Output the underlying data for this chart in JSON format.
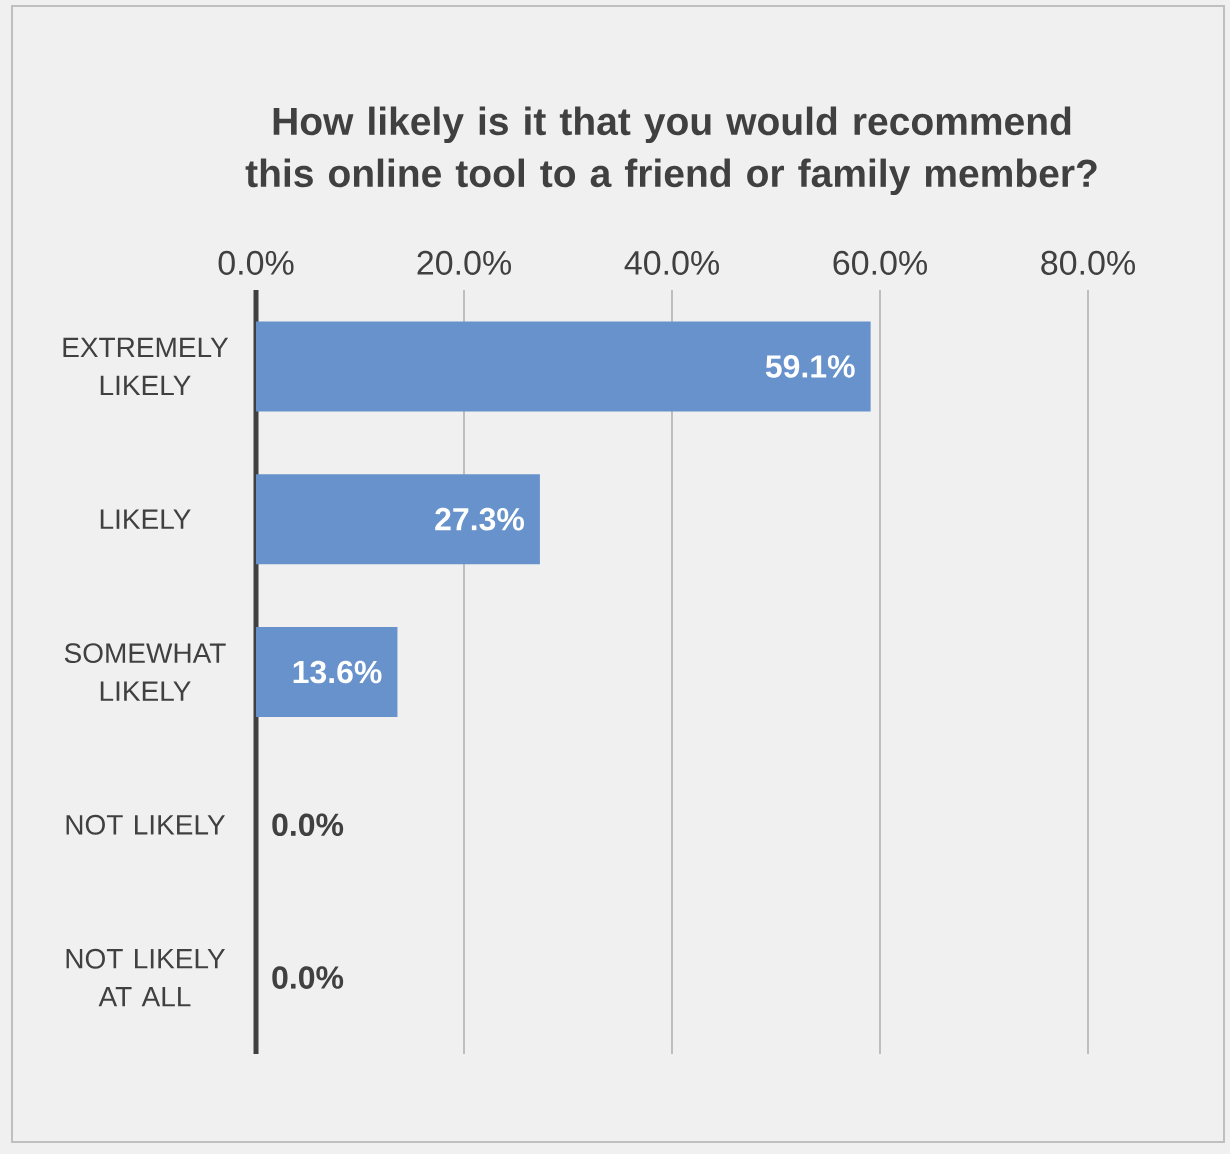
{
  "chart_data": {
    "type": "bar",
    "orientation": "horizontal",
    "title": "How likely is it that you would recommend this online tool to a friend or family member?",
    "categories": [
      "EXTREMELY LIKELY",
      "LIKELY",
      "SOMEWHAT LIKELY",
      "NOT LIKELY",
      "NOT LIKELY AT ALL"
    ],
    "values": [
      59.1,
      27.3,
      13.6,
      0,
      0
    ],
    "value_labels": [
      "59.1%",
      "27.3%",
      "13.6%",
      "0.0%",
      "0.0%"
    ],
    "color": "#6792cb",
    "xlim": [
      0,
      80
    ],
    "xticks": [
      {
        "value": 0,
        "label": "0.0%"
      },
      {
        "value": 20,
        "label": "20.0%"
      },
      {
        "value": 40,
        "label": "40.0%"
      },
      {
        "value": 60,
        "label": "60.0%"
      },
      {
        "value": 80,
        "label": "80.0%"
      }
    ],
    "grid": "x"
  }
}
